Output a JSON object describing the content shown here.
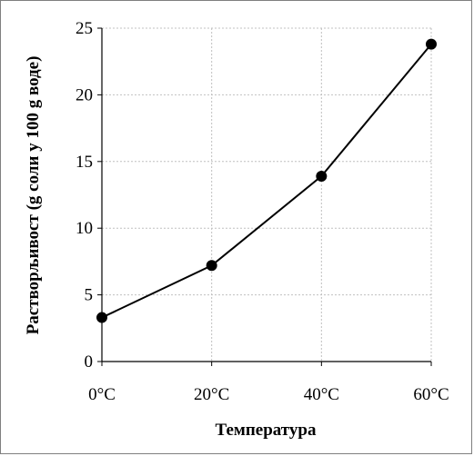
{
  "chart_data": {
    "type": "line",
    "title": "",
    "xlabel": "Температура",
    "ylabel": "Растворљивост (g соли у 100 g воде)",
    "categories": [
      "0°C",
      "20°C",
      "40°C",
      "60°C"
    ],
    "series": [
      {
        "values": [
          3.3,
          7.2,
          13.9,
          23.8
        ]
      }
    ],
    "ylim": [
      0,
      25
    ],
    "yticks": [
      "0",
      "5",
      "10",
      "15",
      "20",
      "25"
    ],
    "grid": true,
    "legend": "none",
    "colors": {
      "line": "#000000",
      "marker": "#000000",
      "grid": "#c0c0c0",
      "border": "#7f7f7f"
    }
  }
}
